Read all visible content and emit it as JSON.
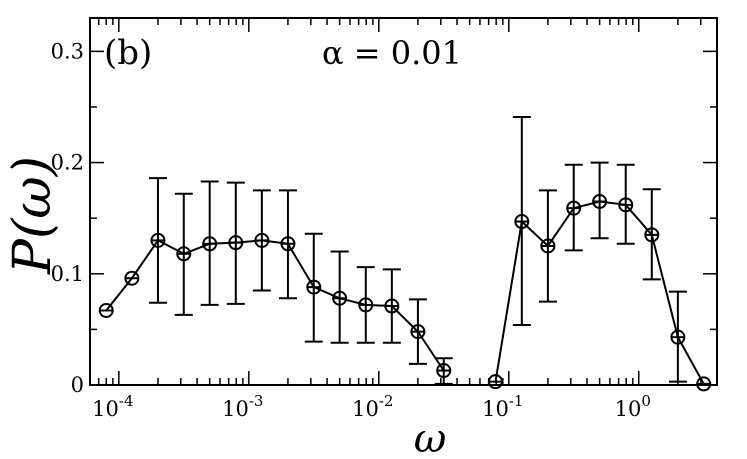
{
  "chart_data": {
    "type": "line",
    "panel_label": "(b)",
    "annotation": "α = 0.01",
    "xlabel": "ω",
    "ylabel": "P(ω)",
    "xscale": "log",
    "xlim": [
      6e-05,
      4
    ],
    "ylim": [
      0,
      0.33
    ],
    "yticks": [
      {
        "value": 0,
        "label": "0"
      },
      {
        "value": 0.1,
        "label": "0.1"
      },
      {
        "value": 0.2,
        "label": "0.2"
      },
      {
        "value": 0.3,
        "label": "0.3"
      }
    ],
    "xticks": [
      {
        "value": 0.0001,
        "base": "10",
        "exp": "-4"
      },
      {
        "value": 0.001,
        "base": "10",
        "exp": "-3"
      },
      {
        "value": 0.01,
        "base": "10",
        "exp": "-2"
      },
      {
        "value": 0.1,
        "base": "10",
        "exp": "-1"
      },
      {
        "value": 1,
        "base": "10",
        "exp": "0"
      }
    ],
    "grid": false,
    "series": [
      {
        "x": [
          8e-05,
          0.000126,
          0.0002,
          0.000316,
          0.0005,
          0.000794,
          0.00126,
          0.002,
          0.00316,
          0.005,
          0.00794,
          0.0126,
          0.02,
          0.0316
        ],
        "y": [
          0.067,
          0.096,
          0.13,
          0.118,
          0.127,
          0.128,
          0.13,
          0.127,
          0.088,
          0.078,
          0.072,
          0.071,
          0.048,
          0.013
        ],
        "err_low": [
          null,
          null,
          0.074,
          0.063,
          0.072,
          0.073,
          0.085,
          0.078,
          0.039,
          0.038,
          0.038,
          0.038,
          0.019,
          0.001
        ],
        "err_high": [
          null,
          null,
          0.186,
          0.172,
          0.183,
          0.182,
          0.175,
          0.175,
          0.136,
          0.12,
          0.106,
          0.104,
          0.077,
          0.024
        ]
      },
      {
        "x": [
          0.079,
          0.126,
          0.2,
          0.316,
          0.5,
          0.794,
          1.26,
          2.0,
          3.16
        ],
        "y": [
          0.003,
          0.147,
          0.125,
          0.159,
          0.165,
          0.162,
          0.135,
          0.043,
          0.001
        ],
        "err_low": [
          null,
          0.054,
          0.075,
          0.121,
          0.132,
          0.127,
          0.095,
          0.003,
          null
        ],
        "err_high": [
          null,
          0.241,
          0.175,
          0.198,
          0.2,
          0.198,
          0.176,
          0.084,
          null
        ]
      }
    ]
  }
}
